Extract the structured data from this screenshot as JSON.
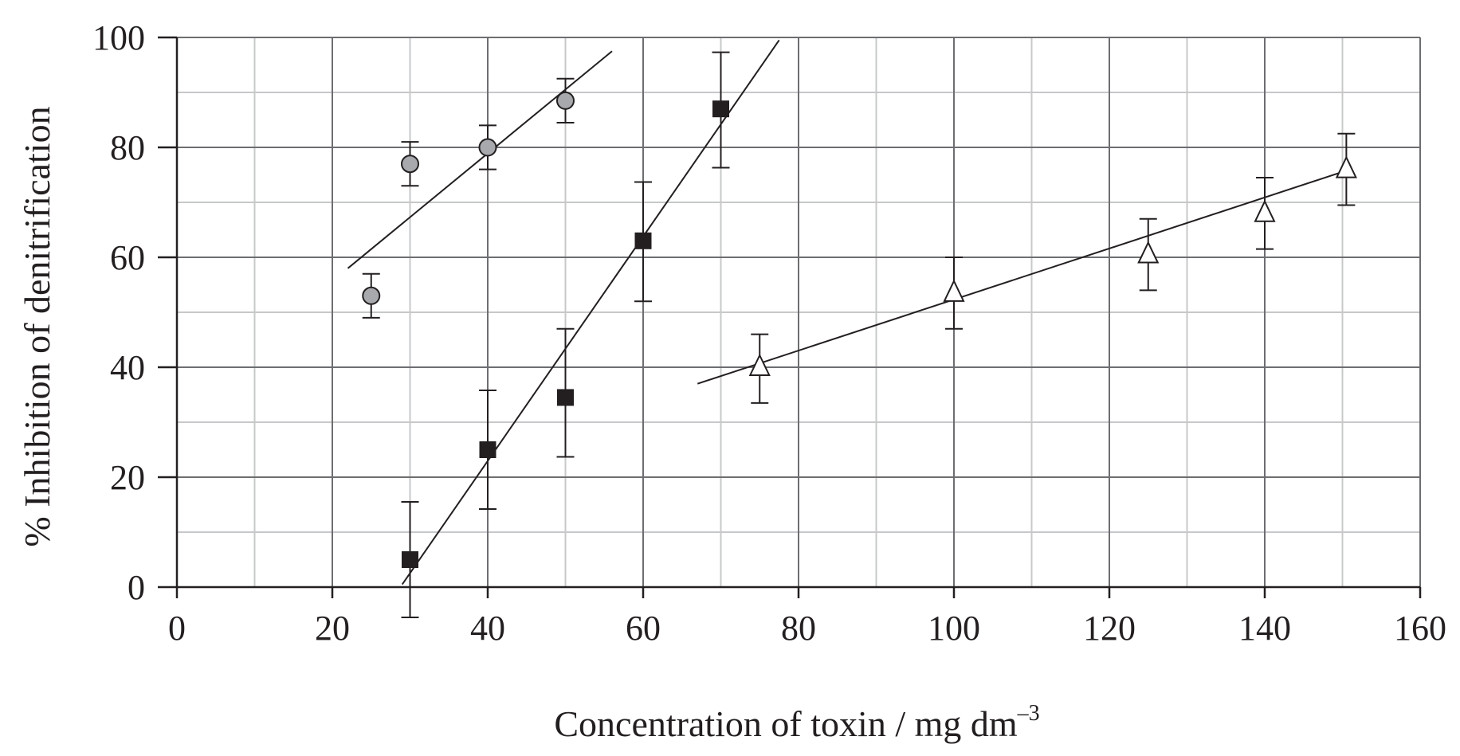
{
  "chart_data": {
    "type": "scatter",
    "title": "",
    "xlabel": "Concentration of toxin / mg dm",
    "xlabel_superscript": "–3",
    "ylabel": "% Inhibition of denitrification",
    "xlim": [
      0,
      160
    ],
    "ylim": [
      0,
      100
    ],
    "x_major_ticks": [
      0,
      20,
      40,
      60,
      80,
      100,
      120,
      140,
      160
    ],
    "x_minor_ticks": [
      10,
      30,
      50,
      70,
      90,
      110,
      130,
      150
    ],
    "y_major_ticks": [
      0,
      20,
      40,
      60,
      80,
      100
    ],
    "y_minor_ticks": [
      10,
      30,
      50,
      70,
      90
    ],
    "x_tick_labels": [
      "0",
      "20",
      "40",
      "60",
      "80",
      "100",
      "120",
      "140",
      "160"
    ],
    "y_tick_labels": [
      "0",
      "20",
      "40",
      "60",
      "80",
      "100"
    ],
    "grid": true,
    "legend": "none",
    "series": [
      {
        "marker": "circle",
        "marker_fill": "#a7a9ac",
        "points": [
          {
            "x": 25,
            "y": 53,
            "err_lo": 4,
            "err_hi": 4
          },
          {
            "x": 30,
            "y": 77,
            "err_lo": 4,
            "err_hi": 4
          },
          {
            "x": 40,
            "y": 80,
            "err_lo": 4,
            "err_hi": 4
          },
          {
            "x": 50,
            "y": 88.5,
            "err_lo": 4,
            "err_hi": 4
          }
        ],
        "trendline": {
          "x": [
            22,
            56
          ],
          "y": [
            58,
            97.5
          ]
        }
      },
      {
        "marker": "square",
        "marker_fill": "#231f20",
        "points": [
          {
            "x": 30,
            "y": 5,
            "err_lo": 10.5,
            "err_hi": 10.5
          },
          {
            "x": 40,
            "y": 25,
            "err_lo": 10.8,
            "err_hi": 10.8
          },
          {
            "x": 50,
            "y": 34.5,
            "err_lo": 10.8,
            "err_hi": 12.5
          },
          {
            "x": 60,
            "y": 63,
            "err_lo": 11,
            "err_hi": 10.7
          },
          {
            "x": 70,
            "y": 87,
            "err_lo": 10.7,
            "err_hi": 10.3
          }
        ],
        "trendline": {
          "x": [
            29,
            77.5
          ],
          "y": [
            0.5,
            99.5
          ]
        }
      },
      {
        "marker": "triangle",
        "marker_fill": "#ffffff",
        "points": [
          {
            "x": 75,
            "y": 40,
            "err_lo": 6.5,
            "err_hi": 6
          },
          {
            "x": 100,
            "y": 53.5,
            "err_lo": 6.5,
            "err_hi": 6.5
          },
          {
            "x": 125,
            "y": 60.5,
            "err_lo": 6.5,
            "err_hi": 6.5
          },
          {
            "x": 140,
            "y": 68,
            "err_lo": 6.5,
            "err_hi": 6.5
          },
          {
            "x": 150.5,
            "y": 76,
            "err_lo": 6.5,
            "err_hi": 6.5
          }
        ],
        "trendline": {
          "x": [
            67,
            151
          ],
          "y": [
            37,
            76
          ]
        }
      }
    ]
  },
  "colors": {
    "ink": "#231f20",
    "major_grid": "#6d6e71",
    "minor_grid": "#c7c8ca"
  }
}
